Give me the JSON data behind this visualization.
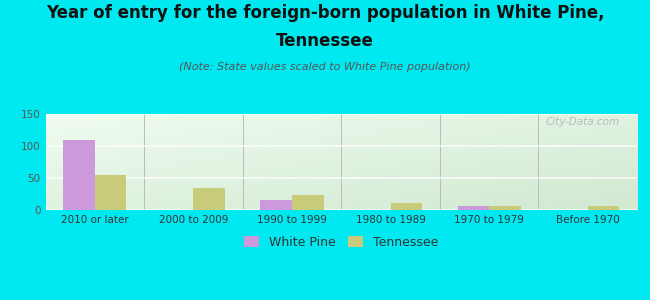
{
  "title_line1": "Year of entry for the foreign-born population in White Pine,",
  "title_line2": "Tennessee",
  "subtitle": "(Note: State values scaled to White Pine population)",
  "categories": [
    "2010 or later",
    "2000 to 2009",
    "1990 to 1999",
    "1980 to 1989",
    "1970 to 1979",
    "Before 1970"
  ],
  "white_pine_values": [
    110,
    0,
    15,
    0,
    7,
    0
  ],
  "tennessee_values": [
    55,
    35,
    23,
    11,
    6,
    7
  ],
  "white_pine_color": "#cc99dd",
  "tennessee_color": "#c8cc7a",
  "bg_color": "#00e8f0",
  "plot_bg_topleft": "#f0f8f0",
  "plot_bg_bottomright": "#d4e8d0",
  "ylim": [
    0,
    150
  ],
  "yticks": [
    0,
    50,
    100,
    150
  ],
  "bar_width": 0.32,
  "watermark": "City-Data.com",
  "legend_wp_label": "White Pine",
  "legend_tn_label": "Tennessee",
  "title_fontsize": 12,
  "subtitle_fontsize": 8,
  "tick_fontsize": 7.5,
  "legend_fontsize": 9
}
